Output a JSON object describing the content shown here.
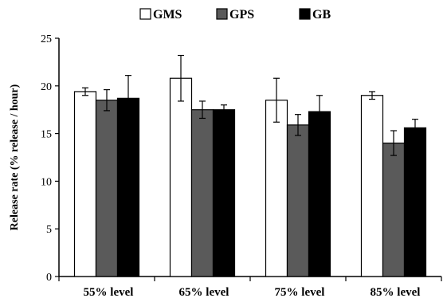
{
  "chart_data": {
    "type": "bar",
    "title": "",
    "xlabel": "",
    "ylabel": "Release rate (% release / hour)",
    "ylim": [
      0,
      25
    ],
    "y_ticks": [
      0,
      5,
      10,
      15,
      20,
      25
    ],
    "grid": false,
    "legend_position": "top",
    "categories": [
      "55% level",
      "65% level",
      "75% level",
      "85% level"
    ],
    "series": [
      {
        "name": "GMS",
        "color": "#ffffff",
        "values": [
          19.4,
          20.8,
          18.5,
          19.0
        ],
        "errors": [
          0.4,
          2.4,
          2.3,
          0.4
        ]
      },
      {
        "name": "GPS",
        "color": "#5a5a5a",
        "values": [
          18.5,
          17.5,
          15.9,
          14.0
        ],
        "errors": [
          1.1,
          0.9,
          1.1,
          1.3
        ]
      },
      {
        "name": "GB",
        "color": "#000000",
        "values": [
          18.7,
          17.5,
          17.3,
          15.6
        ],
        "errors": [
          2.4,
          0.5,
          1.7,
          0.9
        ]
      }
    ]
  }
}
